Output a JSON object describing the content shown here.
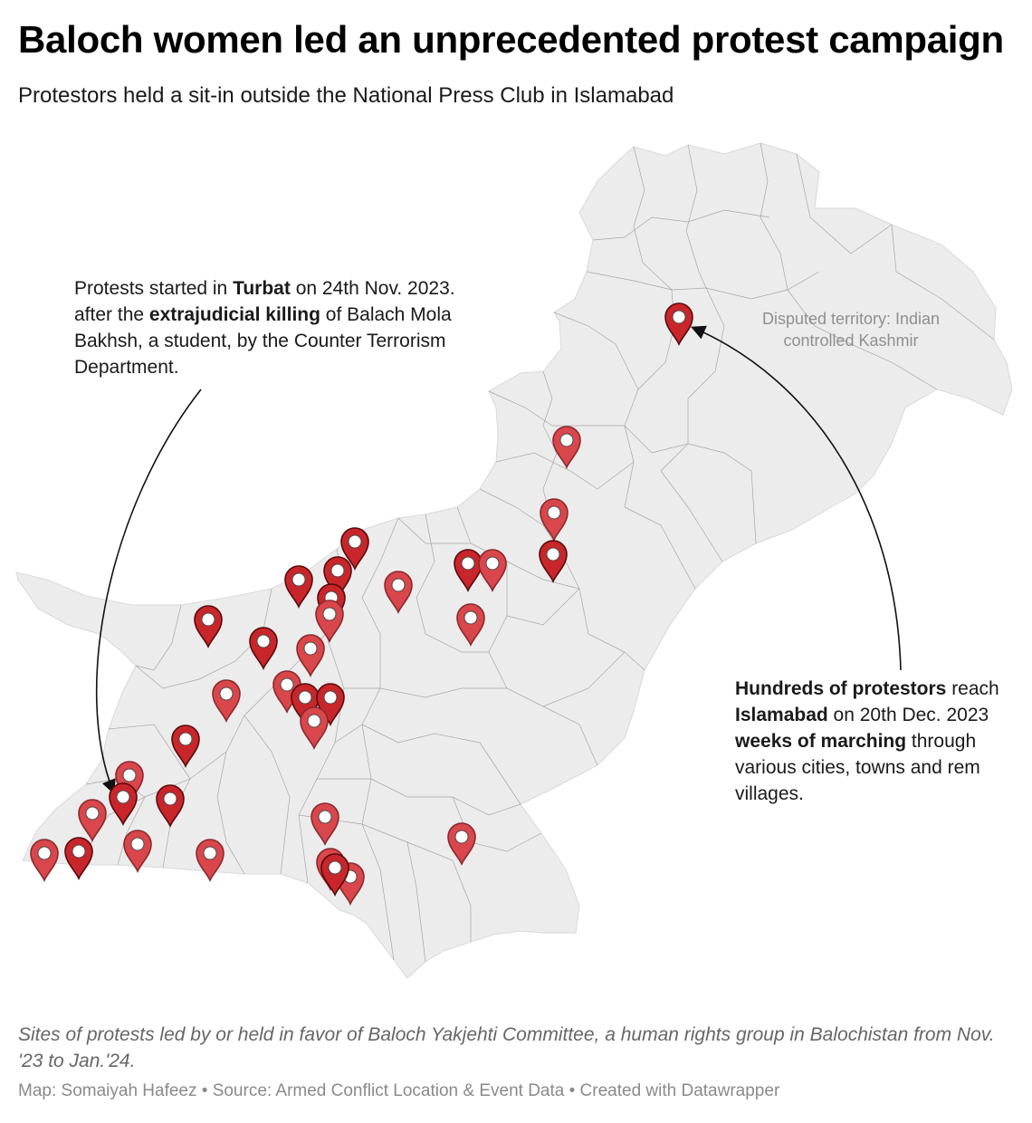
{
  "title": "Baloch women led an unprecedented protest campaign",
  "subtitle": "Protestors held a sit-in outside the National Press Club in Islamabad",
  "annotations": {
    "left": {
      "p1": "Protests started in ",
      "b1": "Turbat",
      "p2": " on 24th Nov. 2023. after the ",
      "b2": "extrajudicial killing",
      "p3": " of Balach Mola Bakhsh, a student, by the Counter Terrorism Department."
    },
    "right": {
      "b1": "Hundreds of protestors",
      "p1": " reach",
      "b2": "Islamabad",
      "p2": " on 20th Dec. 2023",
      "b3": "weeks of marching",
      "p3": " through",
      "p4": "various cities, towns and rem",
      "p5": "villages."
    },
    "kashmir_line1": "Disputed territory: Indian",
    "kashmir_line2": "controlled Kashmir"
  },
  "caption": "Sites of protests led by or held in favor of Baloch Yakjehti Committee, a human rights group in Balochistan from Nov. '23 to Jan.'24.",
  "footer": "Map: Somaiyah Hafeez • Source: Armed Conflict Location & Event Data • Created with Datawrapper",
  "colors": {
    "land": "#ececec",
    "border": "#9a9a9a",
    "marker": "#c8262b",
    "marker_outline": "#5a0a0c"
  },
  "marker_icon": "map-pin-icon"
}
